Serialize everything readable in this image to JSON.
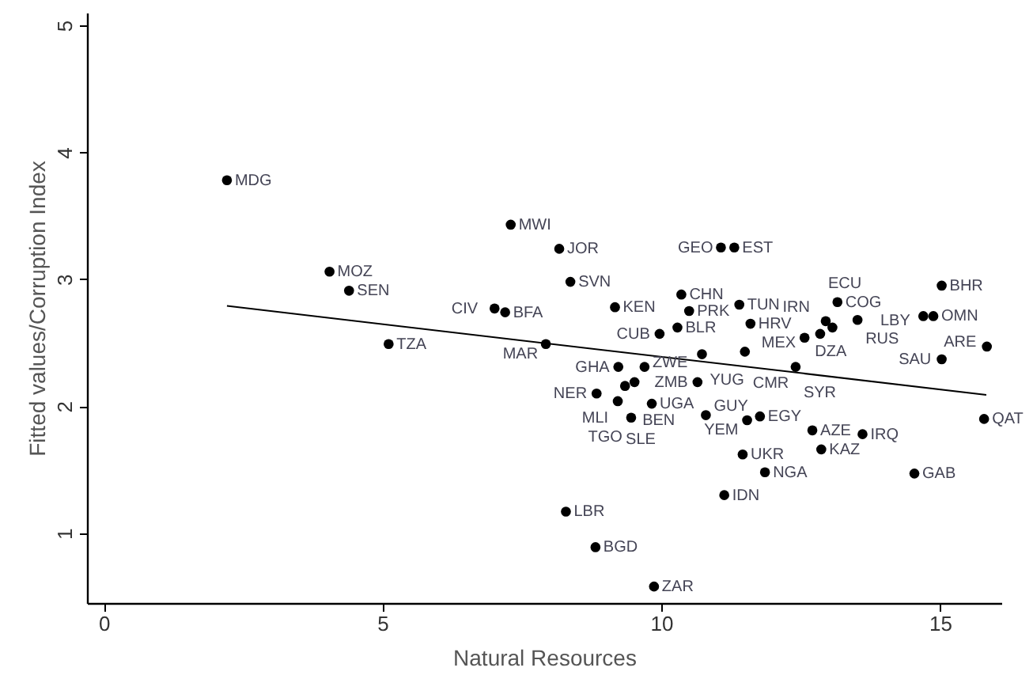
{
  "chart_data": {
    "type": "scatter",
    "xlabel": "Natural Resources",
    "ylabel": "Fitted values/Corruption Index",
    "xlim": [
      -0.3,
      16.1
    ],
    "ylim": [
      0.45,
      5.1
    ],
    "xticks": [
      0,
      5,
      10,
      15
    ],
    "yticks": [
      1,
      2,
      3,
      4,
      5
    ],
    "grid": false,
    "series": [
      {
        "marker": "circle",
        "color": "#000000",
        "x": [
          2.21,
          7.3,
          8.17,
          8.37,
          4.05,
          4.4,
          5.11,
          7.01,
          7.2,
          9.17,
          7.93,
          10.36,
          10.5,
          9.97,
          10.29,
          11.4,
          11.6,
          11.07,
          11.31,
          13.16,
          15.03,
          14.7,
          14.88,
          12.95,
          13.52,
          13.07,
          12.85,
          12.57,
          15.84,
          15.03,
          15.79,
          10.73,
          11.5,
          12.41,
          10.65,
          9.23,
          9.7,
          9.35,
          9.52,
          8.84,
          9.22,
          9.83,
          9.46,
          10.8,
          11.54,
          11.77,
          12.71,
          13.61,
          12.87,
          11.46,
          11.86,
          14.54,
          11.13,
          8.29,
          8.82,
          9.87
        ],
        "values": [
          3.78,
          3.43,
          3.24,
          2.98,
          3.06,
          2.91,
          2.49,
          2.77,
          2.74,
          2.78,
          2.49,
          2.88,
          2.75,
          2.57,
          2.62,
          2.8,
          2.65,
          3.25,
          3.25,
          2.82,
          2.95,
          2.71,
          2.71,
          2.67,
          2.68,
          2.62,
          2.57,
          2.54,
          2.47,
          2.37,
          1.9,
          2.41,
          2.43,
          2.31,
          2.19,
          2.31,
          2.31,
          2.16,
          2.19,
          2.1,
          2.04,
          2.02,
          1.91,
          1.93,
          1.89,
          1.92,
          1.81,
          1.78,
          1.66,
          1.62,
          1.48,
          1.47,
          1.3,
          1.17,
          0.89,
          0.58
        ]
      },
      {
        "type": "line",
        "marker": "none",
        "color": "#000000",
        "line_style": "solid",
        "x": [
          2.21,
          15.83
        ],
        "values": [
          2.79,
          2.09
        ]
      }
    ],
    "annotations": [
      {
        "text": "MDG",
        "x": 2.21,
        "y": 3.78
      },
      {
        "text": "MWI",
        "x": 7.3,
        "y": 3.43
      },
      {
        "text": "JOR",
        "x": 8.17,
        "y": 3.24
      },
      {
        "text": "SVN",
        "x": 8.37,
        "y": 2.98
      },
      {
        "text": "MOZ",
        "x": 4.05,
        "y": 3.06
      },
      {
        "text": "SEN",
        "x": 4.4,
        "y": 2.91
      },
      {
        "text": "TZA",
        "x": 5.11,
        "y": 2.49
      },
      {
        "text": "CIV",
        "x": 7.01,
        "y": 2.77
      },
      {
        "text": "BFA",
        "x": 7.2,
        "y": 2.74
      },
      {
        "text": "KEN",
        "x": 9.17,
        "y": 2.78
      },
      {
        "text": "MAR",
        "x": 7.93,
        "y": 2.49
      },
      {
        "text": "CHN",
        "x": 10.36,
        "y": 2.88
      },
      {
        "text": "PRK",
        "x": 10.5,
        "y": 2.75
      },
      {
        "text": "CUB",
        "x": 9.97,
        "y": 2.57
      },
      {
        "text": "BLR",
        "x": 10.29,
        "y": 2.62
      },
      {
        "text": "TUN",
        "x": 11.4,
        "y": 2.8
      },
      {
        "text": "HRV",
        "x": 11.6,
        "y": 2.65
      },
      {
        "text": "GEO",
        "x": 11.07,
        "y": 3.25
      },
      {
        "text": "EST",
        "x": 11.31,
        "y": 3.25
      },
      {
        "text": "COG",
        "x": 13.16,
        "y": 2.82
      },
      {
        "text": "BHR",
        "x": 15.03,
        "y": 2.95
      },
      {
        "text": "LBY",
        "x": 14.7,
        "y": 2.71
      },
      {
        "text": "OMN",
        "x": 14.88,
        "y": 2.71
      },
      {
        "text": "IRN",
        "x": 12.95,
        "y": 2.67
      },
      {
        "text": "RUS",
        "x": 13.52,
        "y": 2.68
      },
      {
        "text": "DZA",
        "x": 13.07,
        "y": 2.62
      },
      {
        "text": "ECU",
        "x": 12.85,
        "y": 2.57
      },
      {
        "text": "MEX",
        "x": 12.57,
        "y": 2.54
      },
      {
        "text": "ARE",
        "x": 15.84,
        "y": 2.47
      },
      {
        "text": "SAU",
        "x": 15.03,
        "y": 2.37
      },
      {
        "text": "QAT",
        "x": 15.79,
        "y": 1.9
      },
      {
        "text": "YUG",
        "x": 10.73,
        "y": 2.41
      },
      {
        "text": "CMR",
        "x": 11.5,
        "y": 2.43
      },
      {
        "text": "SYR",
        "x": 12.41,
        "y": 2.31
      },
      {
        "text": "ZMB",
        "x": 10.65,
        "y": 2.19
      },
      {
        "text": "GHA",
        "x": 9.23,
        "y": 2.31
      },
      {
        "text": "ZWE",
        "x": 9.7,
        "y": 2.31
      },
      {
        "text": "MLI",
        "x": 9.35,
        "y": 2.16
      },
      {
        "text": "BEN",
        "x": 9.52,
        "y": 2.19
      },
      {
        "text": "NER",
        "x": 8.84,
        "y": 2.1
      },
      {
        "text": "SLE",
        "x": 9.22,
        "y": 2.04
      },
      {
        "text": "UGA",
        "x": 9.83,
        "y": 2.02
      },
      {
        "text": "TGO",
        "x": 9.46,
        "y": 1.91
      },
      {
        "text": "GUY",
        "x": 10.8,
        "y": 1.93
      },
      {
        "text": "YEM",
        "x": 11.54,
        "y": 1.89
      },
      {
        "text": "EGY",
        "x": 11.77,
        "y": 1.92
      },
      {
        "text": "AZE",
        "x": 12.71,
        "y": 1.81
      },
      {
        "text": "IRQ",
        "x": 13.61,
        "y": 1.78
      },
      {
        "text": "KAZ",
        "x": 12.87,
        "y": 1.66
      },
      {
        "text": "UKR",
        "x": 11.46,
        "y": 1.62
      },
      {
        "text": "NGA",
        "x": 11.86,
        "y": 1.48
      },
      {
        "text": "GAB",
        "x": 14.54,
        "y": 1.47
      },
      {
        "text": "IDN",
        "x": 11.13,
        "y": 1.3
      },
      {
        "text": "LBR",
        "x": 8.29,
        "y": 1.17
      },
      {
        "text": "BGD",
        "x": 8.82,
        "y": 0.89
      },
      {
        "text": "ZAR",
        "x": 9.87,
        "y": 0.58
      }
    ]
  }
}
